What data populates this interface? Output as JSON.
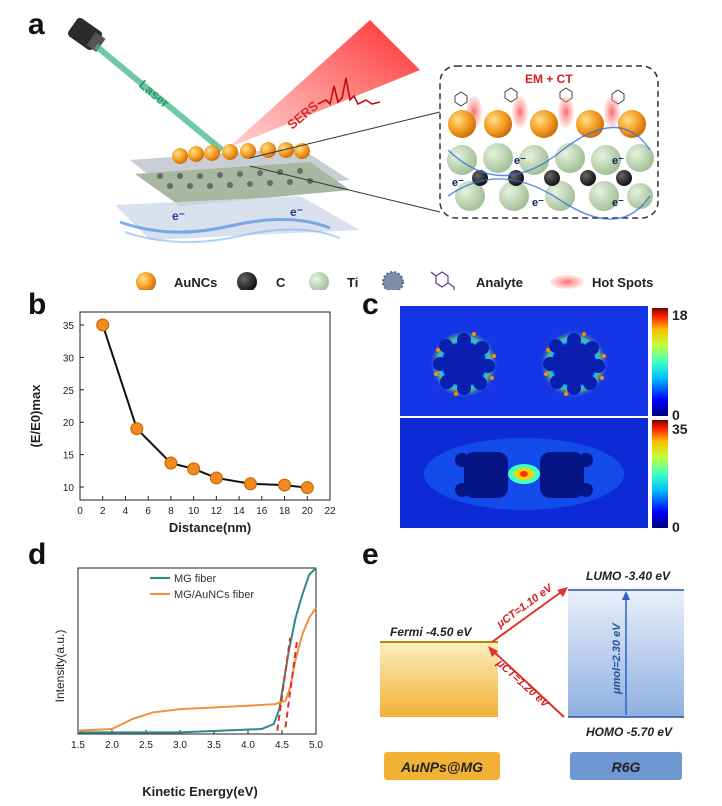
{
  "panels": {
    "a": "a",
    "b": "b",
    "c": "c",
    "d": "d",
    "e": "e"
  },
  "schematic": {
    "laser_label": "Laser",
    "sers_label": "SERS",
    "em_ct_label": "EM + CT",
    "electron_label": "e⁻"
  },
  "legend": {
    "aunc": "AuNCs",
    "carbon": "C",
    "titanium": "Ti",
    "analyte": "Analyte",
    "hotspots": "Hot Spots"
  },
  "colorbar": {
    "top_max": "18",
    "top_min": "0",
    "bottom_max": "35",
    "bottom_min": "0"
  },
  "energy": {
    "lumo": "LUMO -3.40 eV",
    "fermi": "Fermi -4.50 eV",
    "homo": "HOMO -5.70 eV",
    "ct_up": "μCT=1.10 eV",
    "ct_down": "μCT=1.20 eV",
    "mol": "μmol=2.30 eV",
    "left_box": "AuNPs@MG",
    "right_box": "R6G",
    "colors": {
      "gold": "#f2b234",
      "blue": "#6f97d2",
      "arrow": "#e0322a"
    }
  },
  "chart_data": [
    {
      "type": "line",
      "panel": "b",
      "title": "",
      "xlabel": "Distance(nm)",
      "ylabel": "(E/E0)max",
      "x": [
        2,
        5,
        8,
        10,
        12,
        15,
        18,
        20
      ],
      "values": [
        35,
        19,
        13.7,
        12.8,
        11.4,
        10.5,
        10.3,
        9.9
      ],
      "xlim": [
        0,
        22
      ],
      "ylim": [
        8,
        37
      ],
      "xticks": [
        "0",
        "2",
        "4",
        "6",
        "8",
        "10",
        "12",
        "14",
        "16",
        "18",
        "20",
        "22"
      ],
      "yticks": [
        "10",
        "15",
        "20",
        "25",
        "30",
        "35"
      ],
      "series_color": "#f08a1e"
    },
    {
      "type": "line",
      "panel": "d",
      "xlabel": "Kinetic Energy(eV)",
      "ylabel": "Intensity(a.u.)",
      "xlim": [
        1.5,
        5.0
      ],
      "ylim": [
        0,
        1
      ],
      "xticks": [
        "1.5",
        "2.0",
        "2.5",
        "3.0",
        "3.5",
        "4.0",
        "4.5",
        "5.0"
      ],
      "series": [
        {
          "name": "MG fiber",
          "color": "#2a8c86",
          "x": [
            1.5,
            3.0,
            4.2,
            4.38,
            4.46,
            4.52,
            4.6,
            4.7,
            4.8,
            4.9,
            5.0
          ],
          "values": [
            0.01,
            0.01,
            0.03,
            0.06,
            0.15,
            0.3,
            0.5,
            0.7,
            0.84,
            0.96,
            1.0
          ]
        },
        {
          "name": "MG/AuNCs fiber",
          "color": "#f0913c",
          "x": [
            1.5,
            2.0,
            2.3,
            2.6,
            3.0,
            3.5,
            4.0,
            4.4,
            4.55,
            4.62,
            4.7,
            4.8,
            4.9,
            5.0
          ],
          "values": [
            0.02,
            0.03,
            0.09,
            0.13,
            0.15,
            0.16,
            0.17,
            0.18,
            0.2,
            0.28,
            0.45,
            0.6,
            0.7,
            0.76
          ]
        }
      ]
    }
  ]
}
